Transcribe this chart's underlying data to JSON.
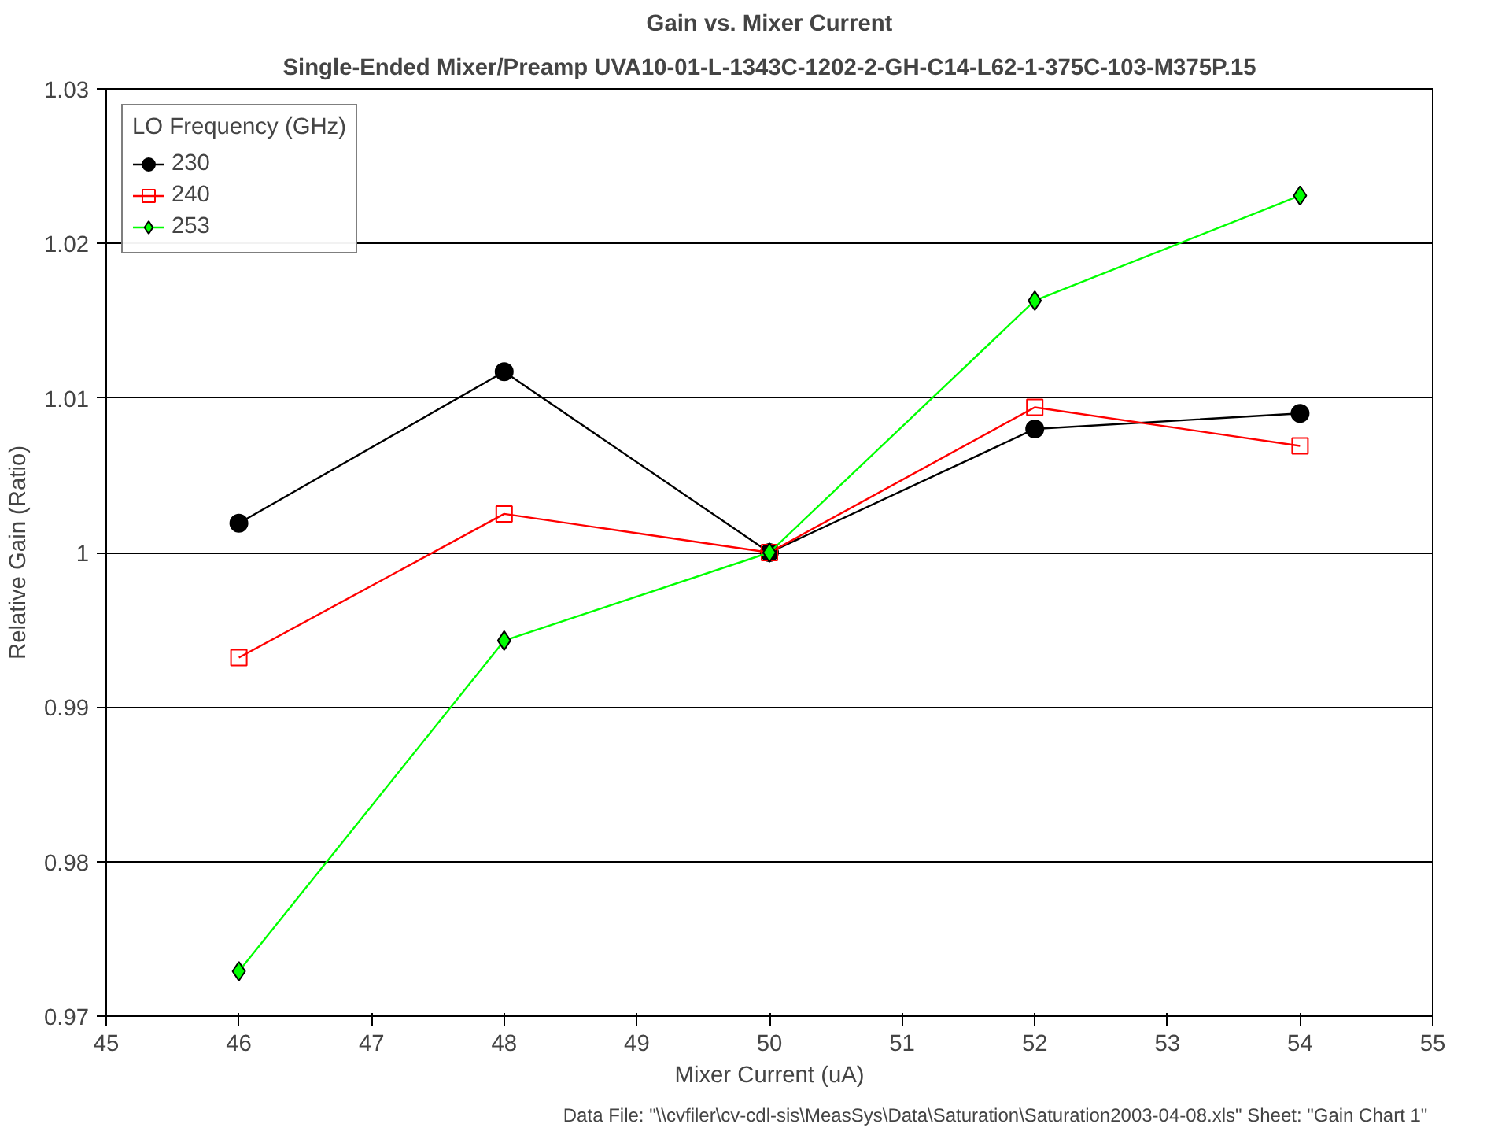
{
  "chart_data": {
    "type": "line",
    "title": "Gain vs. Mixer Current",
    "subtitle": "Single-Ended Mixer/Preamp UVA10-01-L-1343C-1202-2-GH-C14-L62-1-375C-103-M375P.15",
    "xlabel": "Mixer Current (uA)",
    "ylabel": "Relative Gain (Ratio)",
    "legend_title": "LO Frequency (GHz)",
    "x": [
      46,
      48,
      50,
      52,
      54
    ],
    "series": [
      {
        "name": "230",
        "color": "#000000",
        "marker": "circle",
        "values": [
          1.0019,
          1.0117,
          1.0,
          1.008,
          1.009
        ]
      },
      {
        "name": "240",
        "color": "#ff0000",
        "marker": "square",
        "values": [
          0.9932,
          1.0025,
          1.0,
          1.0094,
          1.0069
        ]
      },
      {
        "name": "253",
        "color": "#00ff00",
        "marker": "diamond",
        "values": [
          0.9729,
          0.9943,
          1.0,
          1.0163,
          1.0231
        ]
      }
    ],
    "xlim": [
      45,
      55
    ],
    "xticks": [
      45,
      46,
      47,
      48,
      49,
      50,
      51,
      52,
      53,
      54,
      55
    ],
    "ylim": [
      0.97,
      1.03
    ],
    "yticks": [
      {
        "value": 0.97,
        "label": "0.97"
      },
      {
        "value": 0.98,
        "label": "0.98"
      },
      {
        "value": 0.99,
        "label": "0.99"
      },
      {
        "value": 1.0,
        "label": "1"
      },
      {
        "value": 1.01,
        "label": "1.01"
      },
      {
        "value": 1.02,
        "label": "1.02"
      },
      {
        "value": 1.03,
        "label": "1.03"
      }
    ],
    "grid": "y",
    "legend": "top left",
    "line_style": "solid",
    "annotations": [
      "Data File: \"\\\\cvfiler\\cv-cdl-sis\\MeasSys\\Data\\Saturation\\Saturation2003-04-08.xls\"  Sheet: \"Gain Chart 1\""
    ]
  }
}
